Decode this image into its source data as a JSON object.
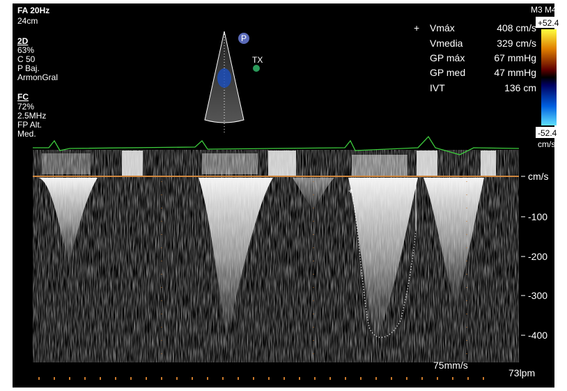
{
  "header": {
    "mode": "FA 20Hz",
    "depth": "24cm"
  },
  "left_panel": {
    "sections": [
      {
        "title": "2D",
        "items": [
          "63%",
          "C 50",
          "P Baj.",
          "ArmonGral"
        ]
      },
      {
        "title": "FC",
        "items": [
          "72%",
          "2.5MHz",
          "FP Alt.",
          "Med."
        ]
      }
    ]
  },
  "probe": {
    "marker": "P",
    "transducer": "TX"
  },
  "measurements": [
    {
      "label": "Vmáx",
      "value": "408 cm/s"
    },
    {
      "label": "Vmedia",
      "value": "329 cm/s"
    },
    {
      "label": "GP máx",
      "value": "67 mmHg"
    },
    {
      "label": "GP med",
      "value": "47 mmHg"
    },
    {
      "label": "IVT",
      "value": "136 cm"
    }
  ],
  "color_bar": {
    "label": "M3 M4",
    "max": "+52.4",
    "min": "-52.4",
    "unit": "cm/s"
  },
  "velocity_scale": {
    "unit": "cm/s",
    "ticks": [
      -100,
      -200,
      -300,
      -400
    ]
  },
  "footer": {
    "sweep_speed": "75mm/s",
    "heart_rate": "73lpm"
  }
}
